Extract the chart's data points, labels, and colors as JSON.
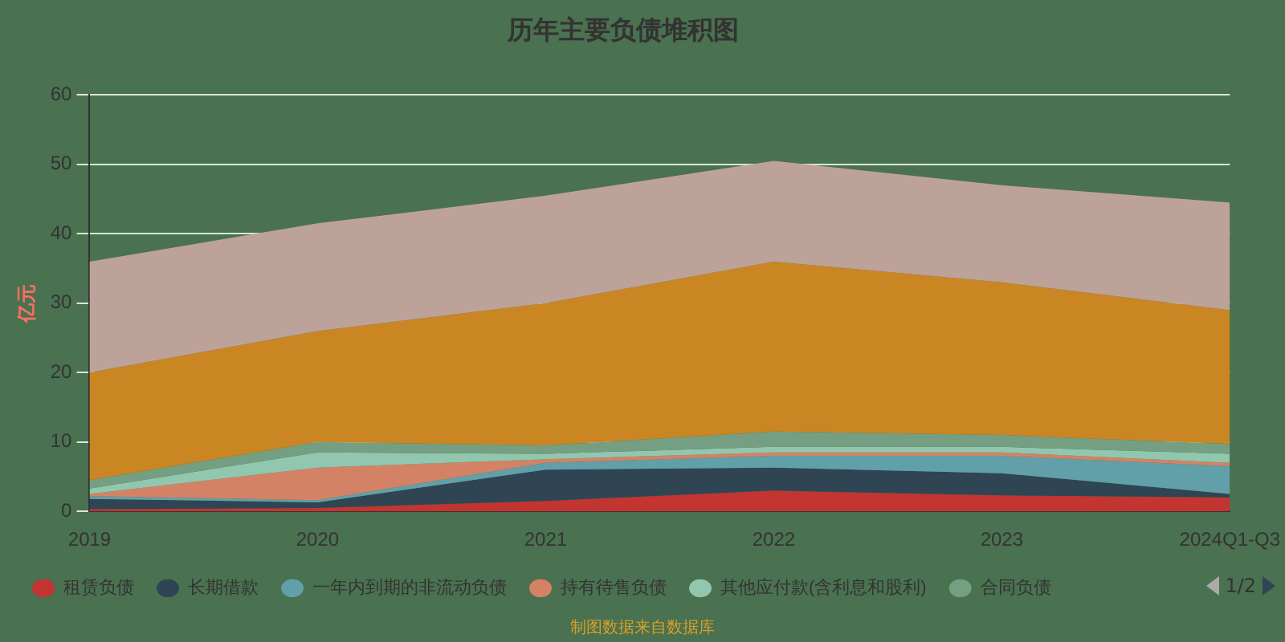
{
  "chart_data": {
    "type": "area",
    "stacked": true,
    "title": "历年主要负债堆积图",
    "ylabel": "亿元",
    "categories": [
      "2019",
      "2020",
      "2021",
      "2022",
      "2023",
      "2024Q1-Q3"
    ],
    "series": [
      {
        "name": "租赁负债",
        "color": "#c23531",
        "values": [
          0.3,
          0.5,
          1.5,
          3,
          2.3,
          2
        ]
      },
      {
        "name": "长期借款",
        "color": "#2f4554",
        "values": [
          1.5,
          0.8,
          4.5,
          3.3,
          3.2,
          0.5
        ]
      },
      {
        "name": "一年内到期的非流动负债",
        "color": "#61a0a8",
        "values": [
          0.4,
          0.3,
          1,
          1.7,
          2.5,
          4
        ]
      },
      {
        "name": "持有待售负债",
        "color": "#d48265",
        "values": [
          0.3,
          4.7,
          0.5,
          0.5,
          0.5,
          0.5
        ]
      },
      {
        "name": "其他应付款(含利息和股利)",
        "color": "#91c7ae",
        "values": [
          0.8,
          2.2,
          0.8,
          0.8,
          0.8,
          1.3
        ]
      },
      {
        "name": "合同负债",
        "color": "#749f83",
        "values": [
          1.2,
          1.5,
          1.2,
          2.2,
          1.7,
          1.4
        ]
      },
      {
        "color": "#ca8622",
        "values": [
          15.5,
          16,
          20.5,
          24.5,
          22,
          19.3
        ]
      },
      {
        "color": "#bda29a",
        "values": [
          16,
          15.5,
          15.5,
          14.5,
          14,
          15.5
        ]
      }
    ],
    "ylim": [
      0,
      60
    ],
    "yticks": [
      0,
      10,
      20,
      30,
      40,
      50,
      60
    ],
    "grid": "y",
    "legend": "bottom",
    "annotations": [
      "1/2",
      "制图数据来自数据库"
    ]
  }
}
